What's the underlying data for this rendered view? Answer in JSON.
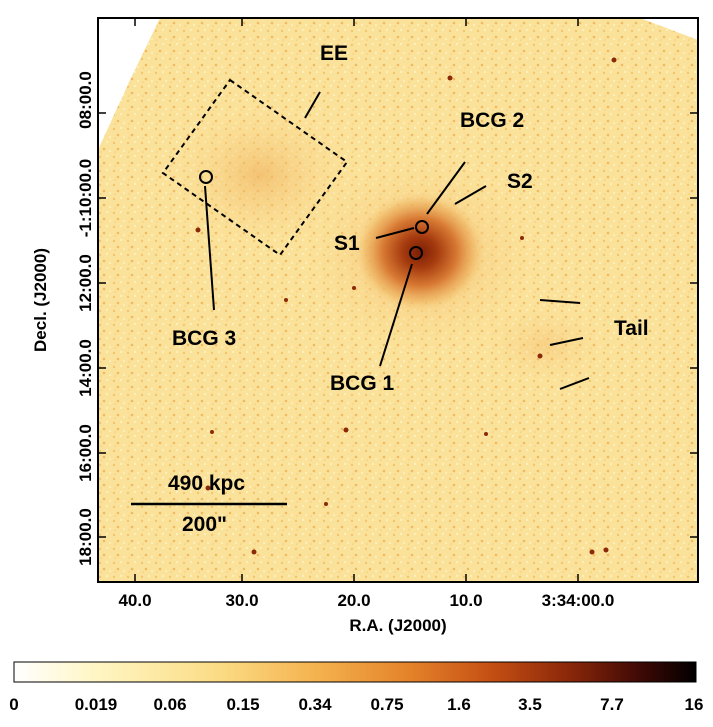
{
  "axes": {
    "xlabel": "R.A. (J2000)",
    "ylabel": "Decl. (J2000)",
    "xticks": [
      "40.0",
      "30.0",
      "20.0",
      "10.0",
      "3:34:00.0"
    ],
    "yticks": [
      "18:00.0",
      "16:00.0",
      "14:00.0",
      "12:00.0",
      "-1:10:00.0",
      "08:00.0"
    ]
  },
  "annotations": {
    "ee": "EE",
    "bcg1": "BCG 1",
    "bcg2": "BCG 2",
    "bcg3": "BCG 3",
    "s1": "S1",
    "s2": "S2",
    "tail": "Tail"
  },
  "scalebar": {
    "physical": "490 kpc",
    "angular": "200\""
  },
  "colorbar": {
    "ticks": [
      "0",
      "0.019",
      "0.06",
      "0.15",
      "0.34",
      "0.75",
      "1.6",
      "3.5",
      "7.7",
      "16"
    ],
    "colors": [
      "#ffffff",
      "#fff2b3",
      "#fcd77e",
      "#f6b24f",
      "#e9862c",
      "#cf5a16",
      "#a1300b",
      "#6a1505",
      "#330704",
      "#000000"
    ]
  },
  "colors": {
    "background_sky": "#fbe49a",
    "cluster_core": "#8a2a0a",
    "frame": "#000000"
  }
}
